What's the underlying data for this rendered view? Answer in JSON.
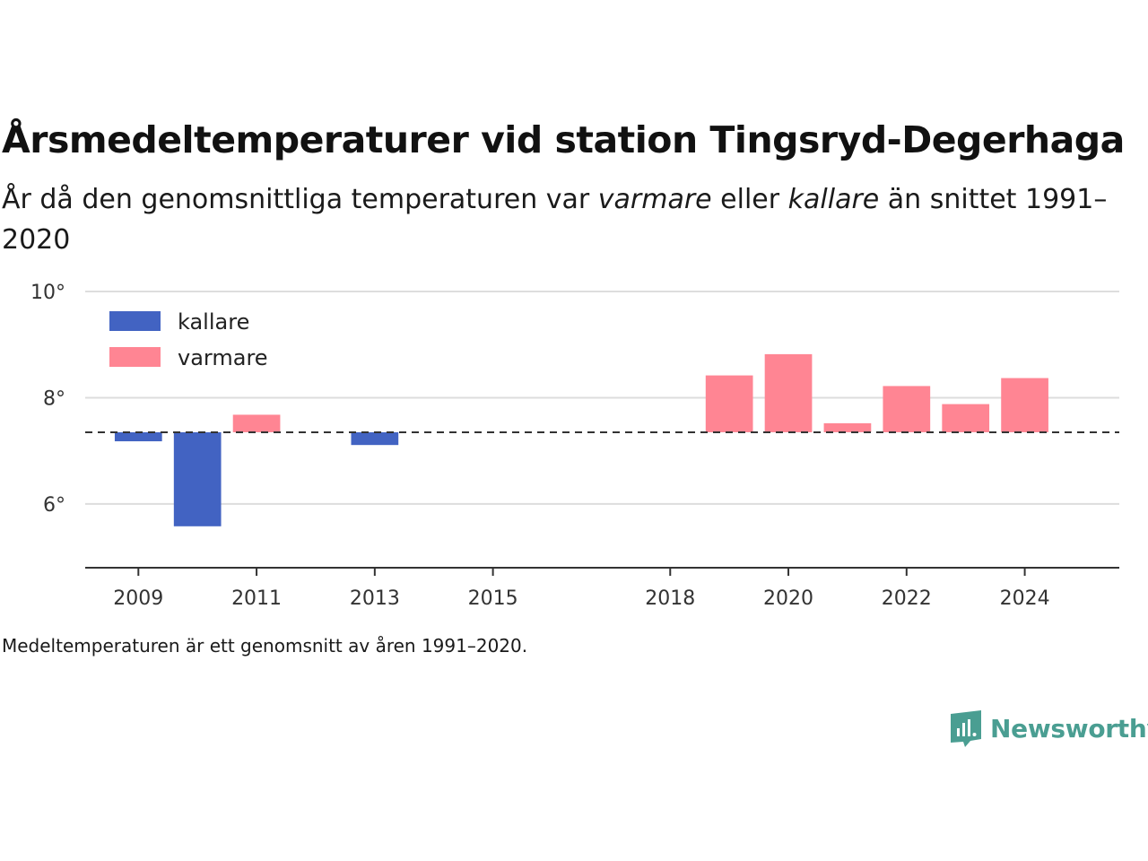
{
  "title": "Årsmedeltemperaturer vid station Tingsryd-Degerhaga",
  "subtitle": {
    "part1": "År då den genomsnittliga temperaturen var ",
    "warmer": "varmare",
    "part2": " eller ",
    "colder": "kallare",
    "part3": " än snittet 1991–2020"
  },
  "note": "Medeltemperaturen är ett genomsnitt av åren 1991–2020.",
  "brand": "Newsworthy",
  "colors": {
    "colder": "#4263c2",
    "warmer": "#ff8593",
    "brand": "#4a9e92",
    "baseline": "#333333",
    "grid": "#dddddd"
  },
  "chart_data": {
    "type": "bar",
    "baseline": 7.35,
    "ylim": [
      4.8,
      10.0
    ],
    "yticks": [
      6,
      8,
      10
    ],
    "ytick_suffix": "°",
    "xlim": [
      2008.1,
      2025.6
    ],
    "xticks": [
      2009,
      2011,
      2013,
      2015,
      2018,
      2020,
      2022,
      2024
    ],
    "grid": true,
    "legend": {
      "position": "top-left",
      "items": [
        {
          "key": "colder",
          "label": "kallare"
        },
        {
          "key": "warmer",
          "label": "varmare"
        }
      ]
    },
    "bars": [
      {
        "year": 2009,
        "value": 7.18
      },
      {
        "year": 2010,
        "value": 5.58
      },
      {
        "year": 2011,
        "value": 7.68
      },
      {
        "year": 2013,
        "value": 7.11
      },
      {
        "year": 2019,
        "value": 8.42
      },
      {
        "year": 2020,
        "value": 8.82
      },
      {
        "year": 2021,
        "value": 7.52
      },
      {
        "year": 2022,
        "value": 8.22
      },
      {
        "year": 2023,
        "value": 7.88
      },
      {
        "year": 2024,
        "value": 8.37
      }
    ]
  }
}
